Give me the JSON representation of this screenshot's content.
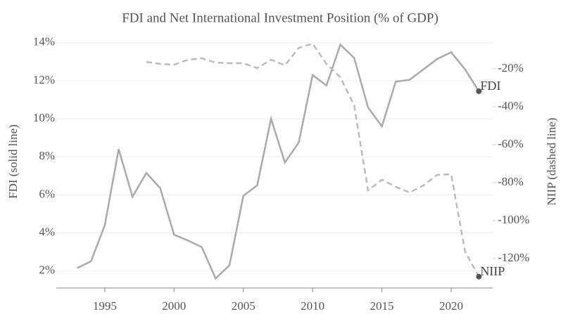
{
  "chart_data": {
    "type": "line",
    "title": "FDI and Net International Investment Position (% of GDP)",
    "y_label": "FDI (solid line)",
    "y2_label": "NIIP (dashed line)",
    "x": [
      1993,
      1994,
      1995,
      1996,
      1997,
      1998,
      1999,
      2000,
      2001,
      2002,
      2003,
      2004,
      2005,
      2006,
      2007,
      2008,
      2009,
      2010,
      2011,
      2012,
      2013,
      2014,
      2015,
      2016,
      2017,
      2018,
      2019,
      2020,
      2021,
      2022
    ],
    "series": [
      {
        "name": "FDI",
        "color": "#aaaaaa",
        "dashed": false,
        "axis": "y",
        "values": [
          2.15,
          2.5,
          4.4,
          8.4,
          5.9,
          7.15,
          6.35,
          3.9,
          3.6,
          3.25,
          1.6,
          2.3,
          5.95,
          6.5,
          10.0,
          7.7,
          8.75,
          12.3,
          11.75,
          13.9,
          13.2,
          10.6,
          9.6,
          11.95,
          12.05,
          12.6,
          13.15,
          13.5,
          12.6,
          11.45
        ]
      },
      {
        "name": "NIIP",
        "color": "#bbbbbb",
        "dashed": true,
        "axis": "y2",
        "values": [
          null,
          null,
          null,
          null,
          null,
          -16.3,
          -17.4,
          -17.8,
          -15.2,
          -14.4,
          -16.7,
          -17,
          -17,
          -19.6,
          -15.2,
          -18.1,
          -8.9,
          -6.7,
          -17.4,
          -24.4,
          -39.3,
          -84.1,
          -78.5,
          -82.2,
          -85.2,
          -81.5,
          -75.9,
          -75.6,
          -116.3,
          -129.6
        ]
      }
    ],
    "xlim": [
      1991.5,
      2023
    ],
    "xticks": [
      1995,
      2000,
      2005,
      2010,
      2015,
      2020
    ],
    "ylim": [
      1.1,
      14.4
    ],
    "yticks": [
      {
        "value": 2,
        "label": "2%"
      },
      {
        "value": 4,
        "label": "4%"
      },
      {
        "value": 6,
        "label": "6%"
      },
      {
        "value": 8,
        "label": "8%"
      },
      {
        "value": 10,
        "label": "10%"
      },
      {
        "value": 12,
        "label": "12%"
      },
      {
        "value": 14,
        "label": "14%"
      }
    ],
    "y2lim": [
      -135.6,
      -2.2
    ],
    "y2ticks": [
      {
        "value": -120,
        "label": "-120%"
      },
      {
        "value": -100,
        "label": "-100%"
      },
      {
        "value": -80,
        "label": "-80%"
      },
      {
        "value": -60,
        "label": "-60%"
      },
      {
        "value": -40,
        "label": "-40%"
      },
      {
        "value": -20,
        "label": "-20%"
      }
    ],
    "grid": true,
    "end_marker_color": "#555555"
  }
}
